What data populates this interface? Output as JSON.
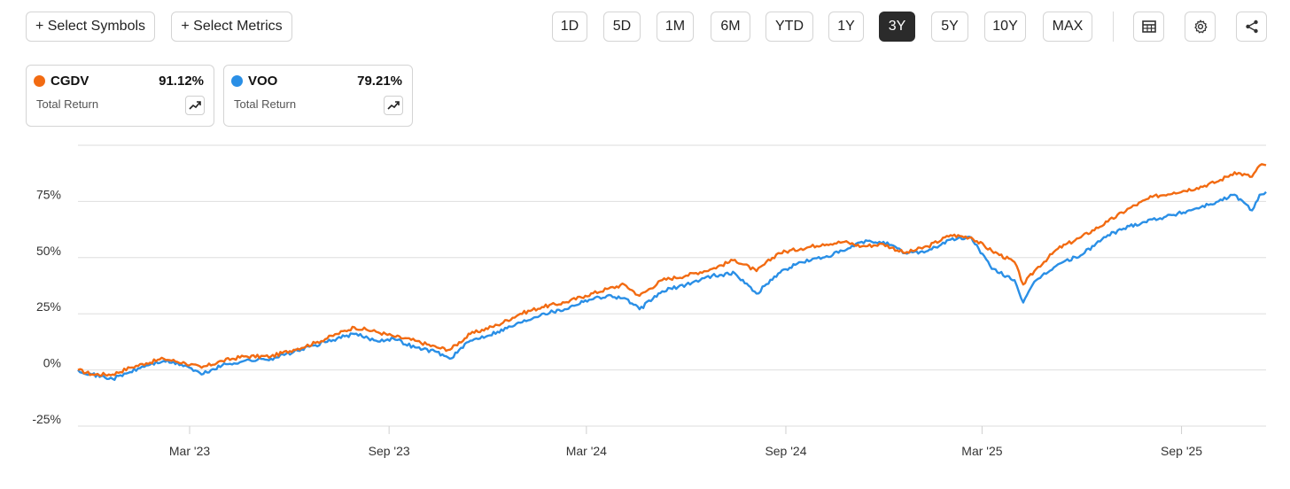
{
  "toolbar": {
    "select_symbols": "+ Select Symbols",
    "select_metrics": "+ Select Metrics",
    "ranges": [
      "1D",
      "5D",
      "1M",
      "6M",
      "YTD",
      "1Y",
      "3Y",
      "5Y",
      "10Y",
      "MAX"
    ],
    "active_range": "3Y",
    "icons": [
      "table-icon",
      "gear-icon",
      "share-icon"
    ]
  },
  "cards": [
    {
      "symbol": "CGDV",
      "value": "91.12%",
      "metric": "Total Return",
      "color": "#f26b12"
    },
    {
      "symbol": "VOO",
      "value": "79.21%",
      "metric": "Total Return",
      "color": "#2a8fe6"
    }
  ],
  "chart_data": {
    "type": "line",
    "ylim": [
      -25,
      100
    ],
    "y_ticks": [
      -25,
      0,
      25,
      50,
      75
    ],
    "y_tick_labels": [
      "-25%",
      "0%",
      "25%",
      "50%",
      "75%"
    ],
    "x_ticks": [
      "Mar '23",
      "Sep '23",
      "Mar '24",
      "Sep '24",
      "Mar '25",
      "Sep '25"
    ],
    "x_tick_dates": [
      "2023-03-01",
      "2023-09-01",
      "2024-03-01",
      "2024-09-01",
      "2025-03-01",
      "2025-09-01"
    ],
    "x_range": [
      "2022-11-18",
      "2025-11-18"
    ],
    "grid": true,
    "series": [
      {
        "name": "CGDV",
        "color": "#f26b12",
        "points": [
          [
            "2022-11-18",
            0
          ],
          [
            "2022-12-01",
            -2
          ],
          [
            "2022-12-20",
            -2
          ],
          [
            "2023-01-05",
            1
          ],
          [
            "2023-01-20",
            3
          ],
          [
            "2023-02-05",
            5
          ],
          [
            "2023-02-25",
            3
          ],
          [
            "2023-03-12",
            1
          ],
          [
            "2023-03-31",
            4
          ],
          [
            "2023-04-20",
            6
          ],
          [
            "2023-05-15",
            6
          ],
          [
            "2023-06-05",
            9
          ],
          [
            "2023-06-25",
            12
          ],
          [
            "2023-07-15",
            16
          ],
          [
            "2023-07-31",
            19
          ],
          [
            "2023-08-20",
            17
          ],
          [
            "2023-09-05",
            15
          ],
          [
            "2023-09-25",
            13
          ],
          [
            "2023-10-15",
            10
          ],
          [
            "2023-10-27",
            9
          ],
          [
            "2023-11-15",
            16
          ],
          [
            "2023-12-10",
            20
          ],
          [
            "2023-12-31",
            25
          ],
          [
            "2024-01-20",
            28
          ],
          [
            "2024-02-10",
            30
          ],
          [
            "2024-02-29",
            33
          ],
          [
            "2024-03-20",
            36
          ],
          [
            "2024-04-05",
            38
          ],
          [
            "2024-04-19",
            33
          ],
          [
            "2024-05-10",
            40
          ],
          [
            "2024-06-01",
            42
          ],
          [
            "2024-06-25",
            45
          ],
          [
            "2024-07-16",
            49
          ],
          [
            "2024-08-05",
            44
          ],
          [
            "2024-08-25",
            52
          ],
          [
            "2024-09-15",
            54
          ],
          [
            "2024-10-05",
            56
          ],
          [
            "2024-10-25",
            57
          ],
          [
            "2024-11-10",
            55
          ],
          [
            "2024-11-30",
            56
          ],
          [
            "2024-12-20",
            52
          ],
          [
            "2025-01-10",
            55
          ],
          [
            "2025-01-31",
            60
          ],
          [
            "2025-02-19",
            59
          ],
          [
            "2025-03-10",
            53
          ],
          [
            "2025-03-31",
            48
          ],
          [
            "2025-04-08",
            38
          ],
          [
            "2025-04-20",
            45
          ],
          [
            "2025-05-10",
            54
          ],
          [
            "2025-05-31",
            59
          ],
          [
            "2025-06-25",
            66
          ],
          [
            "2025-07-15",
            72
          ],
          [
            "2025-08-05",
            77
          ],
          [
            "2025-08-25",
            79
          ],
          [
            "2025-09-15",
            81
          ],
          [
            "2025-10-05",
            84
          ],
          [
            "2025-10-20",
            88
          ],
          [
            "2025-11-05",
            86
          ],
          [
            "2025-11-12",
            91
          ],
          [
            "2025-11-18",
            91.12
          ]
        ]
      },
      {
        "name": "VOO",
        "color": "#2a8fe6",
        "points": [
          [
            "2022-11-18",
            0
          ],
          [
            "2022-12-01",
            -2
          ],
          [
            "2022-12-20",
            -4
          ],
          [
            "2023-01-05",
            -1
          ],
          [
            "2023-01-20",
            2
          ],
          [
            "2023-02-05",
            4
          ],
          [
            "2023-02-25",
            2
          ],
          [
            "2023-03-12",
            -2
          ],
          [
            "2023-03-31",
            2
          ],
          [
            "2023-04-20",
            4
          ],
          [
            "2023-05-15",
            5
          ],
          [
            "2023-06-05",
            8
          ],
          [
            "2023-06-25",
            11
          ],
          [
            "2023-07-15",
            14
          ],
          [
            "2023-07-31",
            16
          ],
          [
            "2023-08-20",
            13
          ],
          [
            "2023-09-05",
            14
          ],
          [
            "2023-09-25",
            10
          ],
          [
            "2023-10-15",
            8
          ],
          [
            "2023-10-27",
            5
          ],
          [
            "2023-11-15",
            13
          ],
          [
            "2023-12-10",
            17
          ],
          [
            "2023-12-31",
            21
          ],
          [
            "2024-01-20",
            25
          ],
          [
            "2024-02-10",
            27
          ],
          [
            "2024-02-29",
            31
          ],
          [
            "2024-03-20",
            33
          ],
          [
            "2024-04-05",
            32
          ],
          [
            "2024-04-19",
            27
          ],
          [
            "2024-05-10",
            35
          ],
          [
            "2024-06-01",
            38
          ],
          [
            "2024-06-25",
            42
          ],
          [
            "2024-07-16",
            43
          ],
          [
            "2024-08-05",
            34
          ],
          [
            "2024-08-25",
            43
          ],
          [
            "2024-09-15",
            48
          ],
          [
            "2024-10-05",
            50
          ],
          [
            "2024-10-25",
            53
          ],
          [
            "2024-11-10",
            57
          ],
          [
            "2024-11-30",
            57
          ],
          [
            "2024-12-20",
            52
          ],
          [
            "2025-01-10",
            53
          ],
          [
            "2025-01-31",
            58
          ],
          [
            "2025-02-19",
            59
          ],
          [
            "2025-03-10",
            45
          ],
          [
            "2025-03-31",
            40
          ],
          [
            "2025-04-08",
            30
          ],
          [
            "2025-04-20",
            40
          ],
          [
            "2025-05-10",
            47
          ],
          [
            "2025-05-31",
            51
          ],
          [
            "2025-06-25",
            60
          ],
          [
            "2025-07-15",
            64
          ],
          [
            "2025-08-05",
            67
          ],
          [
            "2025-08-25",
            69
          ],
          [
            "2025-09-15",
            72
          ],
          [
            "2025-10-05",
            75
          ],
          [
            "2025-10-20",
            78
          ],
          [
            "2025-11-05",
            71
          ],
          [
            "2025-11-12",
            78
          ],
          [
            "2025-11-18",
            79.21
          ]
        ]
      }
    ]
  }
}
